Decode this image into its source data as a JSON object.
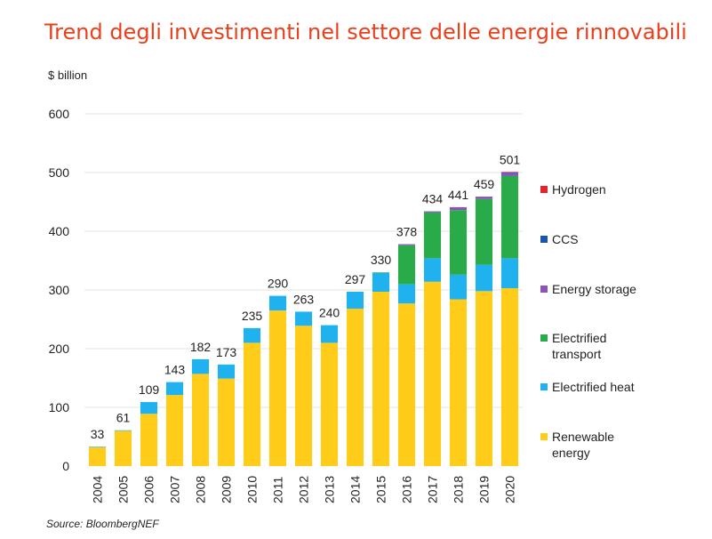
{
  "page_title": "Trend degli investimenti nel settore delle energie rinnovabili",
  "chart_data": {
    "type": "bar",
    "stacked": true,
    "ylabel": "$ billion",
    "ylim": [
      0,
      600
    ],
    "yticks": [
      0,
      100,
      200,
      300,
      400,
      500,
      600
    ],
    "grid": true,
    "legend_position": "right",
    "source": "Source: BloombergNEF",
    "categories": [
      "2004",
      "2005",
      "2006",
      "2007",
      "2008",
      "2009",
      "2010",
      "2011",
      "2012",
      "2013",
      "2014",
      "2015",
      "2016",
      "2017",
      "2018",
      "2019",
      "2020"
    ],
    "totals": [
      33,
      61,
      109,
      143,
      182,
      173,
      235,
      290,
      263,
      240,
      297,
      330,
      378,
      434,
      441,
      459,
      501
    ],
    "series": [
      {
        "name": "Renewable energy",
        "color": "#ffcc1a",
        "values": [
          32,
          60,
          89,
          121,
          157,
          149,
          210,
          265,
          239,
          210,
          268,
          297,
          277,
          314,
          284,
          298,
          303
        ]
      },
      {
        "name": "Electrified heat",
        "color": "#1fb2ef",
        "values": [
          1,
          1,
          20,
          22,
          25,
          24,
          25,
          25,
          24,
          30,
          29,
          32,
          33,
          40,
          42,
          45,
          51
        ]
      },
      {
        "name": "Electrified transport",
        "color": "#2aab49",
        "values": [
          0,
          0,
          0,
          0,
          0,
          0,
          0,
          0,
          0,
          0,
          0,
          1,
          66,
          78,
          110,
          112,
          140
        ]
      },
      {
        "name": "Energy storage",
        "color": "#8a55b7",
        "values": [
          0,
          0,
          0,
          0,
          0,
          0,
          0,
          0,
          0,
          0,
          0,
          0,
          2,
          2,
          5,
          4,
          5
        ]
      },
      {
        "name": "CCS",
        "color": "#1a55b0",
        "values": [
          0,
          0,
          0,
          0,
          0,
          0,
          0,
          0,
          0,
          0,
          0,
          0,
          0,
          0,
          0,
          0,
          1
        ]
      },
      {
        "name": "Hydrogen",
        "color": "#e8222a",
        "values": [
          0,
          0,
          0,
          0,
          0,
          0,
          0,
          0,
          0,
          0,
          0,
          0,
          0,
          0,
          0,
          0,
          1
        ]
      }
    ],
    "legend_order": [
      "Hydrogen",
      "CCS",
      "Energy storage",
      "Electrified transport",
      "Electrified heat",
      "Renewable energy"
    ],
    "legend_lines": {
      "Hydrogen": [
        "Hydrogen"
      ],
      "CCS": [
        "CCS"
      ],
      "Energy storage": [
        "Energy storage"
      ],
      "Electrified transport": [
        "Electrified",
        "transport"
      ],
      "Electrified heat": [
        "Electrified heat"
      ],
      "Renewable energy": [
        "Renewable",
        "energy"
      ]
    }
  }
}
